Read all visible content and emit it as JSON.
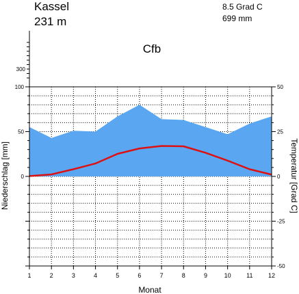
{
  "station": "Kassel",
  "elevation": "231 m",
  "annual_temp": "8.5 Grad C",
  "annual_precip": "699 mm",
  "climate_class": "Cfb",
  "colors": {
    "precip_fill": "#5aa6f0",
    "temp_line": "#dd1111",
    "grid": "#000000"
  },
  "chart_data": {
    "type": "area",
    "xlabel": "Monat",
    "ylabel_left": "Niederschlag [mm]",
    "ylabel_right": "Temperatur [Grad C]",
    "x": [
      1,
      2,
      3,
      4,
      5,
      6,
      7,
      8,
      9,
      10,
      11,
      12
    ],
    "x_ticks": [
      "1",
      "2",
      "3",
      "4",
      "5",
      "6",
      "7",
      "8",
      "9",
      "10",
      "11",
      "12"
    ],
    "left_ticks": [
      "100",
      "50",
      "0"
    ],
    "left_upper_ticks": [
      "300"
    ],
    "right_ticks": [
      "50",
      "25",
      "0",
      "-25",
      "-50"
    ],
    "precip_ylim": [
      0,
      100
    ],
    "temp_ylim": [
      -50,
      50
    ],
    "series": [
      {
        "key": "precip",
        "values": [
          55,
          43,
          51,
          50,
          67,
          80,
          64,
          63,
          55,
          47,
          59,
          67
        ]
      },
      {
        "key": "temp",
        "values": [
          0.2,
          1.1,
          4.0,
          7.2,
          12.6,
          15.6,
          17.0,
          16.8,
          13.2,
          8.8,
          4.0,
          1.0
        ]
      }
    ],
    "grid": true
  }
}
